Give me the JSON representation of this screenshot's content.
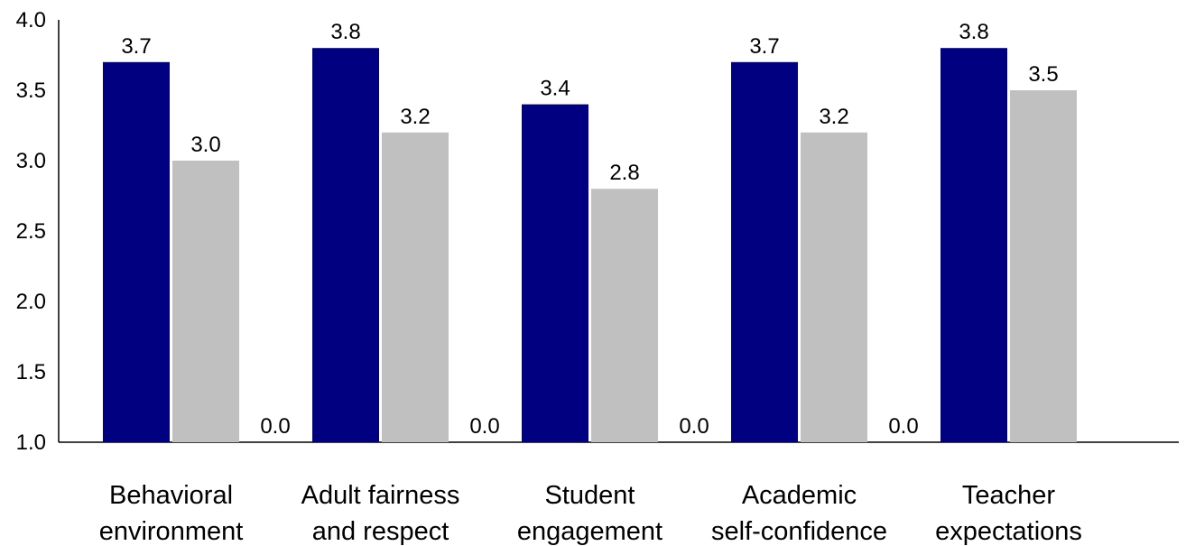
{
  "chart_data": {
    "type": "bar",
    "categories": [
      [
        "Behavioral",
        "environment"
      ],
      [
        "Adult fairness",
        "and respect"
      ],
      [
        "Student",
        "engagement"
      ],
      [
        "Academic",
        "self-confidence"
      ],
      [
        "Teacher",
        "expectations"
      ]
    ],
    "series": [
      {
        "color": "#000080",
        "values": [
          3.7,
          3.8,
          3.4,
          3.7,
          3.8
        ],
        "labels": [
          "3.7",
          "3.8",
          "3.4",
          "3.7",
          "3.8"
        ]
      },
      {
        "color": "#c0c0c0",
        "values": [
          3.0,
          3.2,
          2.8,
          3.2,
          3.5
        ],
        "labels": [
          "3.0",
          "3.2",
          "2.8",
          "3.2",
          "3.5"
        ]
      },
      {
        "color": "#ffffff",
        "values": [
          0.0,
          0.0,
          0.0,
          0.0,
          null
        ],
        "labels": [
          "0.0",
          "0.0",
          "0.0",
          "0.0",
          null
        ]
      }
    ],
    "ylim": [
      1.0,
      4.0
    ],
    "yticks": [
      "1.0",
      "1.5",
      "2.0",
      "2.5",
      "3.0",
      "3.5",
      "4.0"
    ],
    "grid": false,
    "legend": "none"
  }
}
